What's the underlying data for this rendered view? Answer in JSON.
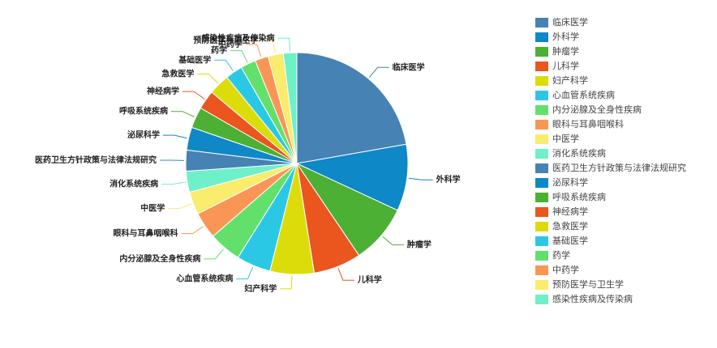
{
  "chart_data": {
    "type": "pie",
    "categories": [
      "临床医学",
      "外科学",
      "肿瘤学",
      "儿科学",
      "妇产科学",
      "心血管系统疾病",
      "内分泌腺及全身性疾病",
      "眼科与耳鼻咽喉科",
      "中医学",
      "消化系统疾病",
      "医药卫生方针政策与法律法规研究",
      "泌尿科学",
      "呼吸系统疾病",
      "神经病学",
      "急救医学",
      "基础医学",
      "药学",
      "中药学",
      "预防医学与卫生学",
      "感染性疾病及传染病"
    ],
    "values": [
      80,
      35,
      31,
      25,
      23,
      18,
      17,
      14,
      12,
      11,
      11,
      12,
      11,
      10,
      11,
      9,
      8,
      7,
      8,
      7
    ],
    "colors": [
      "#4682b4",
      "#0e88c7",
      "#4cb034",
      "#ea561e",
      "#dcdc0a",
      "#2bc8e6",
      "#62e06b",
      "#fa9655",
      "#faec6c",
      "#6ef0c8",
      "#4682b4",
      "#0e88c7",
      "#4cb034",
      "#ea561e",
      "#dcdc0a",
      "#2bc8e6",
      "#62e06b",
      "#fa9655",
      "#faec6c",
      "#6ef0c8"
    ]
  }
}
